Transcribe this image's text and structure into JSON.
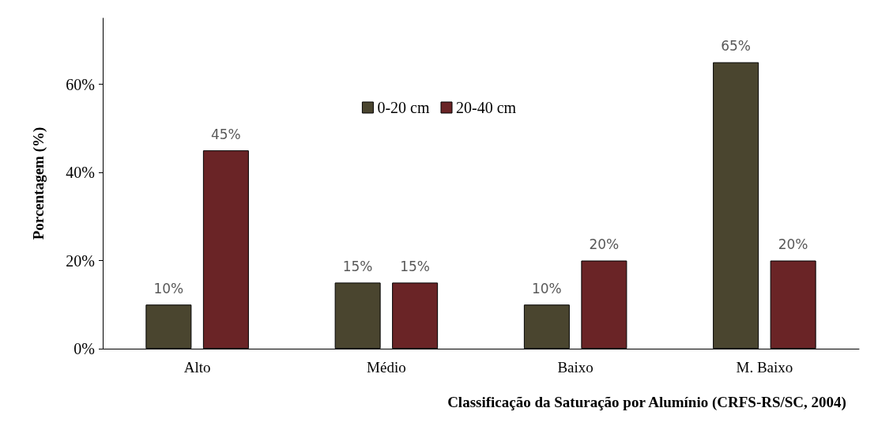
{
  "chart_data": {
    "type": "bar",
    "xlabel": "Classificação da Saturação por Alumínio (CRFS-RS/SC, 2004)",
    "ylabel": "Porcentagem (%)",
    "categories": [
      "Alto",
      "Médio",
      "Baixo",
      "M. Baixo"
    ],
    "series": [
      {
        "name": "0-20 cm",
        "color": "#4a452f",
        "values": [
          10,
          15,
          10,
          65
        ],
        "value_labels": [
          "10%",
          "15%",
          "10%",
          "65%"
        ]
      },
      {
        "name": "20-40 cm",
        "color": "#6a2426",
        "values": [
          45,
          15,
          20,
          20
        ],
        "value_labels": [
          "45%",
          "15%",
          "20%",
          "20%"
        ]
      }
    ],
    "ylim": [
      0,
      75
    ],
    "yticks": [
      {
        "value": 0,
        "label": "0%"
      },
      {
        "value": 20,
        "label": "20%"
      },
      {
        "value": 40,
        "label": "40%"
      },
      {
        "value": 60,
        "label": "60%"
      }
    ],
    "grid": false,
    "legend": "top"
  }
}
